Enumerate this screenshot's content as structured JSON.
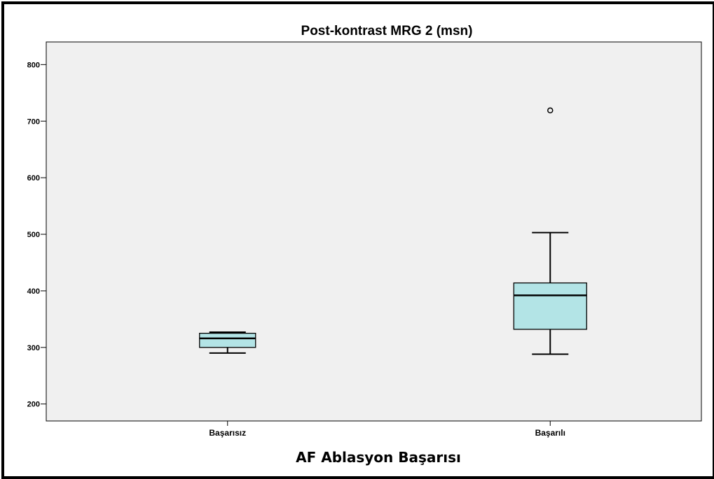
{
  "chart_data": {
    "type": "boxplot",
    "title": "Post-kontrast   MRG 2 (msn)",
    "xlabel": "AF Ablasyon Başarısı",
    "ylabel": "",
    "ylim": [
      170,
      840
    ],
    "yticks": [
      200,
      300,
      400,
      500,
      600,
      700,
      800
    ],
    "categories": [
      "Başarısız",
      "Başarılı"
    ],
    "boxes": [
      {
        "category": "Başarısız",
        "min": 290,
        "q1": 300,
        "median": 316,
        "q3": 325,
        "max": 327,
        "outliers": []
      },
      {
        "category": "Başarılı",
        "min": 288,
        "q1": 332,
        "median": 392,
        "q3": 414,
        "max": 503,
        "outliers": [
          719
        ]
      }
    ],
    "grid": false,
    "colors": {
      "box_fill": "#b3e4e6",
      "plot_bg": "#f0f0f0",
      "stroke": "#000000"
    }
  }
}
